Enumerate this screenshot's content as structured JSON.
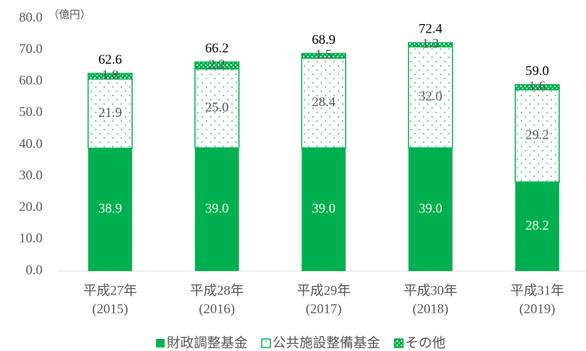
{
  "chart_data": {
    "type": "stacked_bar",
    "unit_label": "（億円）",
    "categories": [
      [
        "平成27年",
        "(2015)"
      ],
      [
        "平成28年",
        "(2016)"
      ],
      [
        "平成29年",
        "(2017)"
      ],
      [
        "平成30年",
        "(2018)"
      ],
      [
        "平成31年",
        "(2019)"
      ]
    ],
    "series": [
      {
        "name": "財政調整基金",
        "color": "#00b050",
        "values": [
          38.9,
          39,
          39,
          39,
          28.2
        ],
        "value_labels": [
          "38.9",
          "39.0",
          "39.0",
          "39.0",
          "28.2"
        ]
      },
      {
        "name": "公共施設整備基金",
        "color": "#00b050",
        "values": [
          21.9,
          25,
          28.4,
          32,
          29.2
        ],
        "value_labels": [
          "21.9",
          "25.0",
          "28.4",
          "32.0",
          "29.2"
        ]
      },
      {
        "name": "その他",
        "color": "#00b050",
        "values": [
          1.8,
          2.2,
          1.5,
          1.3,
          1.6
        ]
      }
    ],
    "totals": [
      62.6,
      66.2,
      68.9,
      72.4,
      59
    ],
    "total_labels": [
      "62.6",
      "66.2",
      "68.9",
      "72.4",
      "59.0"
    ],
    "ylim": [
      0,
      80
    ],
    "yticks": [
      {
        "value": 0,
        "label": "0.0"
      },
      {
        "value": 10,
        "label": "10.0"
      },
      {
        "value": 20,
        "label": "20.0"
      },
      {
        "value": 30,
        "label": "30.0"
      },
      {
        "value": 40,
        "label": "40.0"
      },
      {
        "value": 50,
        "label": "50.0"
      },
      {
        "value": 60,
        "label": "60.0"
      },
      {
        "value": 70,
        "label": "70.0"
      },
      {
        "value": 80,
        "label": "80.0"
      }
    ]
  }
}
